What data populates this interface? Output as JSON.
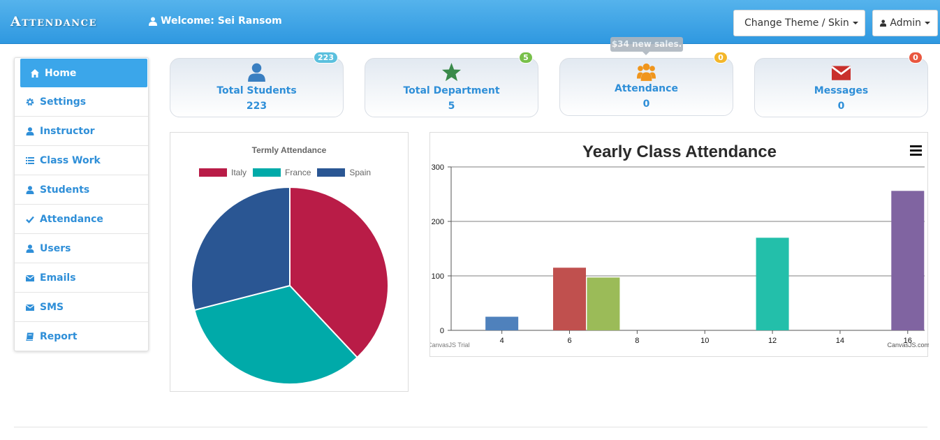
{
  "navbar": {
    "brand": "Attendance",
    "welcome": "Welcome: Sei Ransom",
    "theme_button": "Change Theme / Skin",
    "admin_button": "Admin"
  },
  "sidebar": {
    "items": [
      {
        "label": "Home",
        "icon": "home-icon"
      },
      {
        "label": "Settings",
        "icon": "gear-icon"
      },
      {
        "label": "Instructor",
        "icon": "user-icon"
      },
      {
        "label": "Class Work",
        "icon": "list-icon"
      },
      {
        "label": "Students",
        "icon": "user-icon"
      },
      {
        "label": "Attendance",
        "icon": "check-icon"
      },
      {
        "label": "Users",
        "icon": "user-icon"
      },
      {
        "label": "Emails",
        "icon": "envelope-icon"
      },
      {
        "label": "SMS",
        "icon": "envelope-icon"
      },
      {
        "label": "Report",
        "icon": "book-icon"
      }
    ]
  },
  "cards": [
    {
      "title": "Total Students",
      "value": "223",
      "badge": "223",
      "badge_color": "#5bc0de",
      "icon": "user-icon",
      "icon_color": "#3a7fc1"
    },
    {
      "title": "Total Department",
      "value": "5",
      "badge": "5",
      "badge_color": "#78c04a",
      "icon": "star-icon",
      "icon_color": "#3a8a4a"
    },
    {
      "title": "Attendance",
      "value": "0",
      "badge": "0",
      "badge_color": "#f3b62a",
      "icon": "users-icon",
      "icon_color": "#f0951c"
    },
    {
      "title": "Messages",
      "value": "0",
      "badge": "0",
      "badge_color": "#e9573f",
      "icon": "envelope-icon",
      "icon_color": "#c9302c"
    }
  ],
  "tooltip": "$34 new sales.",
  "chart_data": [
    {
      "type": "pie",
      "title": "Termly Attendance",
      "labels": [
        "Italy",
        "France",
        "Spain"
      ],
      "values": [
        38,
        33,
        29
      ],
      "colors": [
        "#b91c47",
        "#00aaa9",
        "#2a5693"
      ],
      "legend": "top"
    },
    {
      "type": "bar",
      "title": "Yearly Class Attendance",
      "x": [
        4,
        6,
        7,
        12,
        16
      ],
      "values": [
        25,
        115,
        97,
        170,
        256
      ],
      "colors": [
        "#4f81bc",
        "#c0504e",
        "#9bbb58",
        "#23bfaa",
        "#8064a1"
      ],
      "xlim": [
        2.5,
        16.5
      ],
      "x_ticks": [
        4,
        6,
        8,
        10,
        12,
        14,
        16
      ],
      "ylim": [
        0,
        300
      ],
      "y_ticks": [
        0,
        100,
        200,
        300
      ],
      "grid": true,
      "watermark_left": "CanvasJS Trial",
      "watermark_right": "CanvasJS.com"
    }
  ]
}
